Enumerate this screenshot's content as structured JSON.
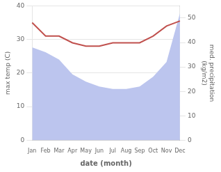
{
  "chart_data": {
    "type": "line",
    "categories": [
      "Jan",
      "Feb",
      "Mar",
      "Apr",
      "May",
      "Jun",
      "Jul",
      "Aug",
      "Sep",
      "Oct",
      "Nov",
      "Dec"
    ],
    "xlabel": "date (month)",
    "ylabel": "max temp (C)",
    "y2label": "med. precipitation\n(kg/m2)",
    "series": [
      {
        "type": "area",
        "color": "#bcc5ee",
        "axis": "y2",
        "values": [
          38,
          36,
          33,
          27,
          24,
          22,
          21,
          21,
          22,
          26,
          32,
          52
        ]
      },
      {
        "type": "line",
        "color": "#c0504d",
        "values": [
          35,
          31,
          31,
          29,
          28,
          28,
          29,
          29,
          29,
          31,
          34,
          35.5
        ]
      }
    ],
    "ylim": [
      0,
      40
    ],
    "yticks": [
      0,
      10,
      20,
      30,
      40
    ],
    "y2lim": [
      0,
      55
    ],
    "y2ticks": [
      0,
      10,
      20,
      30,
      40,
      50
    ],
    "grid": true
  }
}
